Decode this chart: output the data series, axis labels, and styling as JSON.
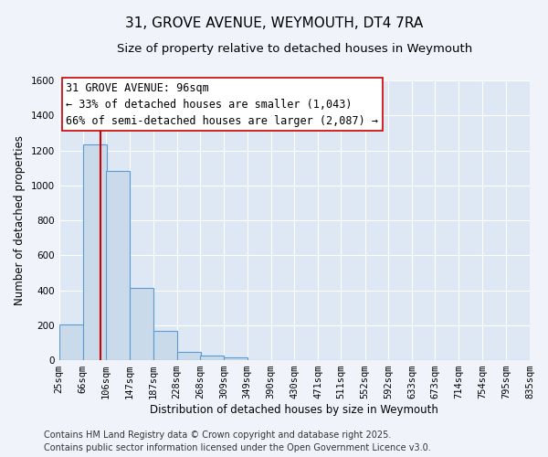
{
  "title": "31, GROVE AVENUE, WEYMOUTH, DT4 7RA",
  "subtitle": "Size of property relative to detached houses in Weymouth",
  "xlabel": "Distribution of detached houses by size in Weymouth",
  "ylabel": "Number of detached properties",
  "bar_left_edges": [
    25,
    66,
    106,
    147,
    187,
    228,
    268,
    309,
    349,
    390,
    430,
    471,
    511,
    552,
    592,
    633,
    673,
    714,
    754,
    795
  ],
  "bar_heights": [
    205,
    1235,
    1085,
    415,
    170,
    50,
    25,
    15,
    0,
    0,
    0,
    0,
    0,
    0,
    0,
    0,
    0,
    0,
    0,
    0
  ],
  "bin_width": 41,
  "tick_labels": [
    "25sqm",
    "66sqm",
    "106sqm",
    "147sqm",
    "187sqm",
    "228sqm",
    "268sqm",
    "309sqm",
    "349sqm",
    "390sqm",
    "430sqm",
    "471sqm",
    "511sqm",
    "552sqm",
    "592sqm",
    "633sqm",
    "673sqm",
    "714sqm",
    "754sqm",
    "795sqm",
    "835sqm"
  ],
  "bar_color": "#c9daea",
  "bar_edge_color": "#5b9bd5",
  "fig_bg_color": "#f0f4fa",
  "ax_bg_color": "#dde8f4",
  "grid_color": "#ffffff",
  "vline_x": 96,
  "vline_color": "#cc0000",
  "annotation_line1": "31 GROVE AVENUE: 96sqm",
  "annotation_line2": "← 33% of detached houses are smaller (1,043)",
  "annotation_line3": "66% of semi-detached houses are larger (2,087) →",
  "ylim": [
    0,
    1600
  ],
  "yticks": [
    0,
    200,
    400,
    600,
    800,
    1000,
    1200,
    1400,
    1600
  ],
  "footer_line1": "Contains HM Land Registry data © Crown copyright and database right 2025.",
  "footer_line2": "Contains public sector information licensed under the Open Government Licence v3.0.",
  "title_fontsize": 11,
  "subtitle_fontsize": 9.5,
  "axis_label_fontsize": 8.5,
  "tick_fontsize": 7.5,
  "annotation_fontsize": 8.5,
  "footer_fontsize": 7
}
